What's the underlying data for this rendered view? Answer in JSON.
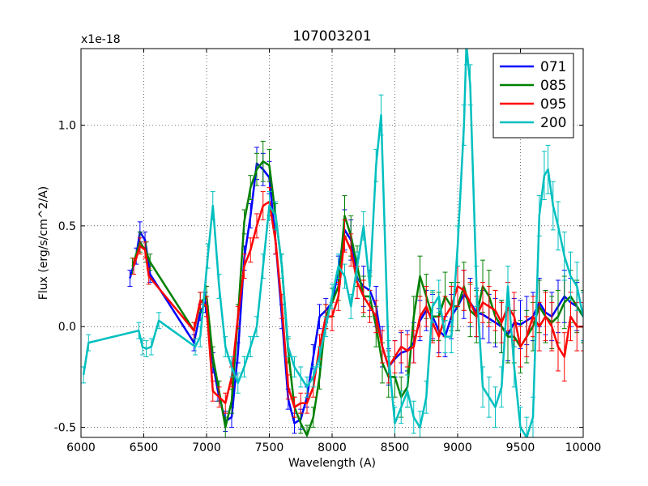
{
  "chart_data": {
    "type": "line",
    "title": "107003201",
    "xlabel": "Wavelength (A)",
    "ylabel": "Flux (erg/s/cm^2/A)",
    "y_offset_label": "x1e-18",
    "xlim": [
      6000,
      10000
    ],
    "ylim": [
      -0.55,
      1.38
    ],
    "xticks": [
      6000,
      6500,
      7000,
      7500,
      8000,
      8500,
      9000,
      9500,
      10000
    ],
    "xtick_labels": [
      "6000",
      "6500",
      "7000",
      "7500",
      "8000",
      "8500",
      "9000",
      "9500",
      "10000"
    ],
    "yticks": [
      -0.5,
      0.0,
      0.5,
      1.0
    ],
    "ytick_labels": [
      "-0.5",
      "0.0",
      "0.5",
      "1.0"
    ],
    "grid": true,
    "legend_position": "top-right",
    "series": [
      {
        "name": "071",
        "color": "#0000ff",
        "x": [
          6390,
          6440,
          6470,
          6510,
          6550,
          6900,
          6950,
          6990,
          7050,
          7090,
          7150,
          7200,
          7250,
          7300,
          7350,
          7400,
          7450,
          7500,
          7550,
          7600,
          7650,
          7700,
          7750,
          7800,
          7850,
          7900,
          7950,
          8000,
          8050,
          8100,
          8150,
          8200,
          8250,
          8300,
          8350,
          8400,
          8450,
          8500,
          8550,
          8600,
          8650,
          8700,
          8750,
          8800,
          8850,
          8900,
          8950,
          9000,
          9050,
          9100,
          9150,
          9200,
          9250,
          9300,
          9350,
          9400,
          9450,
          9500,
          9550,
          9600,
          9650,
          9700,
          9750,
          9800,
          9850,
          9900,
          9950,
          10000
        ],
        "y": [
          0.24,
          0.35,
          0.47,
          0.43,
          0.26,
          -0.08,
          0.07,
          0.12,
          -0.18,
          -0.32,
          -0.47,
          -0.45,
          -0.13,
          0.34,
          0.55,
          0.81,
          0.78,
          0.74,
          0.42,
          0.05,
          -0.36,
          -0.48,
          -0.46,
          -0.35,
          -0.15,
          0.05,
          0.08,
          0.12,
          0.28,
          0.48,
          0.43,
          0.24,
          0.2,
          0.18,
          0.1,
          -0.1,
          -0.2,
          -0.16,
          -0.13,
          -0.12,
          -0.08,
          0.03,
          0.08,
          0.05,
          -0.02,
          -0.05,
          0.05,
          0.1,
          0.16,
          0.12,
          0.07,
          0.06,
          0.04,
          0.02,
          0.0,
          -0.04,
          0.02,
          0.01,
          0.03,
          0.05,
          0.12,
          0.07,
          0.05,
          0.1,
          0.15,
          0.12,
          0.1,
          0.05
        ],
        "err": [
          0.04,
          0.04,
          0.05,
          0.04,
          0.04,
          0.04,
          0.04,
          0.05,
          0.05,
          0.05,
          0.05,
          0.05,
          0.05,
          0.06,
          0.06,
          0.08,
          0.08,
          0.08,
          0.06,
          0.06,
          0.05,
          0.05,
          0.05,
          0.05,
          0.06,
          0.06,
          0.06,
          0.07,
          0.07,
          0.1,
          0.1,
          0.1,
          0.1,
          0.1,
          0.1,
          0.1,
          0.09,
          0.09,
          0.1,
          0.1,
          0.1,
          0.1,
          0.1,
          0.11,
          0.11,
          0.1,
          0.11,
          0.12,
          0.12,
          0.12,
          0.12,
          0.12,
          0.12,
          0.12,
          0.13,
          0.13,
          0.12,
          0.12,
          0.12,
          0.12,
          0.12,
          0.11,
          0.12,
          0.13,
          0.13,
          0.12,
          0.12,
          0.12
        ]
      },
      {
        "name": "085",
        "color": "#008000",
        "x": [
          6410,
          6470,
          6520,
          6550,
          6900,
          6950,
          7000,
          7050,
          7100,
          7150,
          7200,
          7250,
          7300,
          7350,
          7400,
          7450,
          7500,
          7550,
          7600,
          7650,
          7700,
          7750,
          7800,
          7850,
          7900,
          7950,
          8000,
          8050,
          8100,
          8150,
          8200,
          8250,
          8300,
          8350,
          8400,
          8450,
          8500,
          8550,
          8600,
          8650,
          8700,
          8750,
          8800,
          8850,
          8900,
          8950,
          9000,
          9050,
          9100,
          9150,
          9200,
          9250,
          9300,
          9350,
          9400,
          9450,
          9500,
          9550,
          9600,
          9650,
          9700,
          9750,
          9800,
          9850,
          9900,
          9950,
          10000
        ],
        "y": [
          0.3,
          0.42,
          0.37,
          0.32,
          -0.02,
          0.12,
          0.15,
          -0.15,
          -0.32,
          -0.5,
          -0.37,
          0.05,
          0.52,
          0.69,
          0.78,
          0.82,
          0.8,
          0.55,
          0.3,
          -0.12,
          -0.4,
          -0.48,
          -0.54,
          -0.45,
          -0.25,
          0.05,
          0.12,
          0.2,
          0.55,
          0.45,
          0.3,
          0.15,
          0.15,
          0.0,
          -0.18,
          -0.25,
          -0.25,
          -0.35,
          -0.3,
          0.05,
          0.25,
          0.15,
          0.05,
          0.05,
          0.15,
          0.1,
          0.1,
          0.2,
          0.08,
          0.05,
          0.2,
          0.15,
          0.05,
          0.0,
          -0.05,
          -0.05,
          -0.1,
          -0.05,
          0.0,
          0.1,
          0.05,
          0.02,
          0.05,
          0.12,
          0.15,
          0.1,
          0.05
        ],
        "err": [
          0.04,
          0.05,
          0.05,
          0.04,
          0.04,
          0.05,
          0.05,
          0.05,
          0.05,
          0.05,
          0.06,
          0.06,
          0.06,
          0.06,
          0.08,
          0.1,
          0.08,
          0.06,
          0.06,
          0.06,
          0.05,
          0.05,
          0.05,
          0.05,
          0.06,
          0.06,
          0.07,
          0.07,
          0.1,
          0.1,
          0.1,
          0.1,
          0.1,
          0.1,
          0.1,
          0.1,
          0.1,
          0.1,
          0.1,
          0.1,
          0.1,
          0.11,
          0.12,
          0.12,
          0.12,
          0.12,
          0.12,
          0.12,
          0.13,
          0.13,
          0.13,
          0.13,
          0.13,
          0.13,
          0.13,
          0.13,
          0.13,
          0.13,
          0.12,
          0.13,
          0.13,
          0.13,
          0.13,
          0.13,
          0.13,
          0.13,
          0.13
        ]
      },
      {
        "name": "095",
        "color": "#ff0000",
        "x": [
          6420,
          6470,
          6510,
          6540,
          6900,
          6950,
          7000,
          7050,
          7100,
          7150,
          7200,
          7250,
          7300,
          7350,
          7400,
          7450,
          7500,
          7550,
          7600,
          7650,
          7700,
          7750,
          7800,
          7850,
          7900,
          7950,
          8000,
          8050,
          8100,
          8150,
          8200,
          8250,
          8300,
          8350,
          8400,
          8450,
          8500,
          8550,
          8600,
          8650,
          8700,
          8750,
          8800,
          8850,
          8900,
          8950,
          9000,
          9050,
          9100,
          9150,
          9200,
          9250,
          9300,
          9350,
          9400,
          9450,
          9500,
          9550,
          9600,
          9650,
          9700,
          9750,
          9800,
          9850,
          9900,
          9950,
          10000
        ],
        "y": [
          0.3,
          0.4,
          0.38,
          0.25,
          -0.02,
          0.13,
          0.1,
          -0.32,
          -0.35,
          -0.38,
          -0.25,
          0.05,
          0.3,
          0.38,
          0.5,
          0.6,
          0.62,
          0.42,
          0.1,
          -0.3,
          -0.4,
          -0.38,
          -0.38,
          -0.3,
          -0.1,
          0.05,
          0.05,
          0.15,
          0.45,
          0.38,
          0.22,
          0.15,
          0.1,
          0.05,
          -0.1,
          -0.2,
          -0.15,
          -0.1,
          -0.12,
          -0.1,
          0.05,
          0.1,
          0.02,
          -0.05,
          0.05,
          0.1,
          0.2,
          0.18,
          0.12,
          0.05,
          0.12,
          0.1,
          0.08,
          0.02,
          0.1,
          0.05,
          -0.1,
          -0.05,
          0.05,
          0.0,
          0.05,
          0.0,
          -0.1,
          -0.15,
          0.05,
          0.0,
          0.0
        ],
        "err": [
          0.04,
          0.04,
          0.04,
          0.04,
          0.04,
          0.04,
          0.05,
          0.05,
          0.05,
          0.05,
          0.05,
          0.05,
          0.06,
          0.06,
          0.06,
          0.07,
          0.07,
          0.06,
          0.06,
          0.06,
          0.05,
          0.05,
          0.05,
          0.05,
          0.06,
          0.06,
          0.07,
          0.07,
          0.08,
          0.08,
          0.08,
          0.08,
          0.08,
          0.08,
          0.08,
          0.08,
          0.08,
          0.08,
          0.08,
          0.08,
          0.1,
          0.1,
          0.1,
          0.1,
          0.1,
          0.1,
          0.1,
          0.1,
          0.1,
          0.1,
          0.1,
          0.1,
          0.1,
          0.1,
          0.12,
          0.12,
          0.1,
          0.1,
          0.1,
          0.12,
          0.12,
          0.12,
          0.12,
          0.12,
          0.12,
          0.12,
          0.12
        ]
      },
      {
        "name": "200",
        "color": "#00bfbf",
        "x": [
          6020,
          6060,
          6460,
          6490,
          6520,
          6560,
          6620,
          6910,
          6950,
          7010,
          7050,
          7100,
          7150,
          7200,
          7250,
          7300,
          7350,
          7400,
          7450,
          7500,
          7550,
          7600,
          7650,
          7700,
          7750,
          7800,
          7850,
          7900,
          7950,
          8000,
          8050,
          8100,
          8150,
          8200,
          8250,
          8300,
          8350,
          8390,
          8450,
          8500,
          8550,
          8600,
          8650,
          8700,
          8750,
          8800,
          8850,
          8900,
          8950,
          9000,
          9050,
          9070,
          9100,
          9150,
          9200,
          9250,
          9300,
          9350,
          9400,
          9450,
          9500,
          9550,
          9600,
          9650,
          9690,
          9720,
          9760,
          9800,
          9850,
          9900,
          9950,
          10000
        ],
        "y": [
          -0.24,
          -0.08,
          -0.02,
          -0.1,
          -0.11,
          -0.1,
          0.03,
          -0.1,
          -0.05,
          0.35,
          0.6,
          0.2,
          -0.1,
          -0.2,
          -0.28,
          -0.2,
          -0.1,
          0.0,
          0.3,
          0.6,
          0.55,
          0.3,
          -0.1,
          -0.2,
          -0.25,
          -0.3,
          -0.25,
          -0.15,
          0.0,
          0.15,
          0.3,
          0.25,
          0.1,
          0.3,
          0.5,
          0.2,
          0.8,
          1.05,
          -0.15,
          -0.48,
          -0.4,
          -0.32,
          -0.45,
          -0.5,
          -0.35,
          0.1,
          0.15,
          -0.05,
          -0.05,
          0.4,
          1.0,
          1.4,
          1.2,
          0.2,
          -0.3,
          -0.35,
          -0.4,
          -0.3,
          0.2,
          -0.2,
          -0.5,
          -0.55,
          -0.45,
          0.55,
          0.75,
          0.78,
          0.6,
          0.5,
          0.35,
          0.25,
          0.2,
          0.05
        ],
        "err": [
          0.04,
          0.04,
          0.04,
          0.04,
          0.04,
          0.04,
          0.04,
          0.04,
          0.05,
          0.06,
          0.07,
          0.06,
          0.05,
          0.05,
          0.05,
          0.05,
          0.05,
          0.05,
          0.06,
          0.07,
          0.07,
          0.06,
          0.05,
          0.05,
          0.05,
          0.05,
          0.05,
          0.05,
          0.05,
          0.06,
          0.06,
          0.06,
          0.06,
          0.07,
          0.07,
          0.07,
          0.08,
          0.1,
          0.08,
          0.08,
          0.08,
          0.08,
          0.08,
          0.08,
          0.08,
          0.08,
          0.08,
          0.08,
          0.08,
          0.1,
          0.1,
          0.1,
          0.1,
          0.1,
          0.1,
          0.1,
          0.1,
          0.1,
          0.1,
          0.1,
          0.1,
          0.1,
          0.1,
          0.1,
          0.12,
          0.12,
          0.12,
          0.12,
          0.12,
          0.12,
          0.12,
          0.12
        ]
      }
    ]
  }
}
